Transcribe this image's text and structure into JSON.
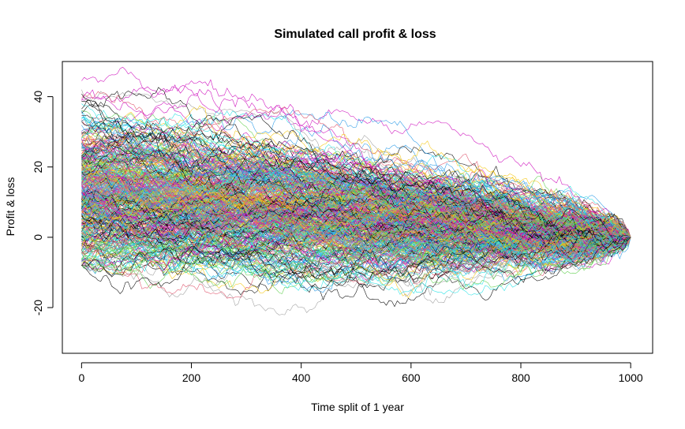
{
  "chart_data": {
    "type": "line",
    "title": "Simulated call profit & loss",
    "xlabel": "Time split of 1 year",
    "ylabel": "Profit & loss",
    "xlim": [
      -35,
      1040
    ],
    "ylim": [
      -33,
      50
    ],
    "x_ticks": [
      0,
      200,
      400,
      600,
      800,
      1000
    ],
    "y_ticks": [
      -20,
      0,
      20,
      40
    ],
    "grid": false,
    "legend": "none",
    "n_steps": 1000,
    "n_paths": 420,
    "terminal_value": 0,
    "initial_range": [
      -8,
      45
    ],
    "colors": [
      "#000000",
      "#DF536B",
      "#61D04F",
      "#2297E6",
      "#28E2E5",
      "#CD0BBC",
      "#F5C710",
      "#9E9E9E"
    ],
    "series": [
      {
        "name": "",
        "start": 44.5,
        "color": "#CD0BBC"
      },
      {
        "name": "",
        "start": 40.8,
        "color": "#000000"
      },
      {
        "name": "",
        "start": 38.0,
        "color": "#28E2E5"
      },
      {
        "name": "",
        "start": 36.5,
        "color": "#000000"
      },
      {
        "name": "",
        "start": 33.0,
        "color": "#2297E6"
      },
      {
        "name": "",
        "start": -6.5,
        "color": "#61D04F"
      },
      {
        "name": "",
        "start": -8.0,
        "color": "#000000"
      },
      {
        "name": "",
        "start": -4.0,
        "color": "#DF536B"
      }
    ]
  }
}
